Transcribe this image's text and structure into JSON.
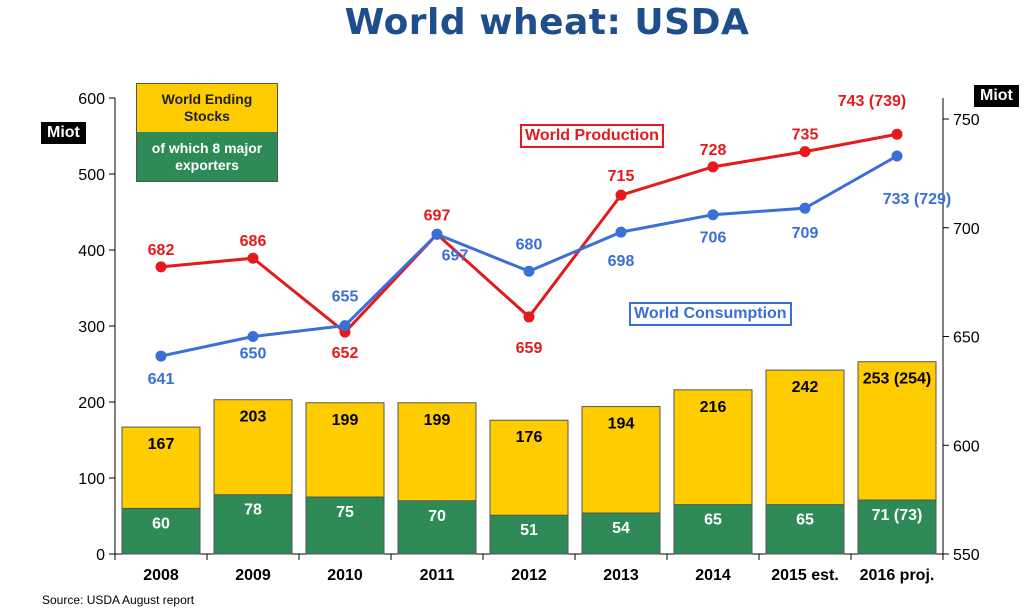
{
  "title": "World wheat: USDA",
  "source": "Source: USDA August report",
  "units": {
    "left": "Miot",
    "right": "Miot"
  },
  "legend": {
    "stocks": "World Ending Stocks",
    "exporters": "of which 8 major exporters"
  },
  "series_labels": {
    "production": "World Production",
    "consumption": "World Consumption"
  },
  "colors": {
    "stocks": "#ffcc00",
    "exporters": "#2e8b57",
    "production": "#e41a1c",
    "consumption": "#3b6fd8",
    "title": "#1f4e8c"
  },
  "chart_data": {
    "type": "bar",
    "categories": [
      "2008",
      "2009",
      "2010",
      "2011",
      "2012",
      "2013",
      "2014",
      "2015 est.",
      "2016 proj."
    ],
    "left_axis": {
      "ylim": [
        0,
        600
      ],
      "ticks": [
        0,
        100,
        200,
        300,
        400,
        500,
        600
      ]
    },
    "right_axis": {
      "ylim": [
        550,
        760
      ],
      "ticks": [
        550,
        600,
        650,
        700,
        750
      ]
    },
    "bars": {
      "total": [
        167,
        203,
        199,
        199,
        176,
        194,
        216,
        242,
        253
      ],
      "exporters": [
        60,
        78,
        75,
        70,
        51,
        54,
        65,
        65,
        71
      ],
      "total_labels": [
        "167",
        "203",
        "199",
        "199",
        "176",
        "194",
        "216",
        "242",
        "253 (254)"
      ],
      "exporter_labels": [
        "60",
        "78",
        "75",
        "70",
        "51",
        "54",
        "65",
        "65",
        "71 (73)"
      ]
    },
    "series": [
      {
        "name": "World Production",
        "axis": "right",
        "values": [
          682,
          686,
          652,
          697,
          659,
          715,
          728,
          735,
          743
        ],
        "labels": [
          "682",
          "686",
          "652",
          "697",
          "659",
          "715",
          "728",
          "735",
          "743 (739)"
        ]
      },
      {
        "name": "World Consumption",
        "axis": "right",
        "values": [
          641,
          650,
          655,
          697,
          680,
          698,
          706,
          709,
          733
        ],
        "labels": [
          "641",
          "650",
          "655",
          "697",
          "680",
          "698",
          "706",
          "709",
          "733 (729)"
        ]
      }
    ],
    "grid": false
  }
}
